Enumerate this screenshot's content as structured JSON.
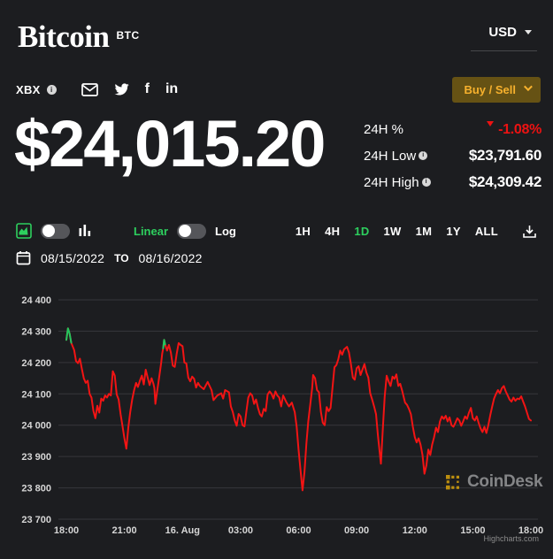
{
  "header": {
    "title": "Bitcoin",
    "symbol": "BTC",
    "currency": "USD",
    "index_label": "XBX",
    "buy_sell_label": "Buy / Sell"
  },
  "icons": {
    "info_glyph": "i",
    "facebook_glyph": "f",
    "linkedin_glyph": "in"
  },
  "price": {
    "current": "$24,015.20"
  },
  "stats": {
    "change_label": "24H %",
    "change_value": "-1.08%",
    "low_label": "24H Low",
    "low_value": "$23,791.60",
    "high_label": "24H High",
    "high_value": "$24,309.42"
  },
  "controls": {
    "scale_linear": "Linear",
    "scale_log": "Log",
    "ranges": [
      "1H",
      "4H",
      "1D",
      "1W",
      "1M",
      "1Y",
      "ALL"
    ],
    "active_range": "1D"
  },
  "date_range": {
    "from": "08/15/2022",
    "separator": "TO",
    "to": "08/16/2022"
  },
  "watermark": {
    "brand": "CoinDesk"
  },
  "credit": "Highcharts.com",
  "colors": {
    "background": "#1c1d20",
    "accent_green": "#2dcf5e",
    "negative_red": "#ed1212",
    "line_red": "#f21414",
    "up_green": "#22c55e",
    "buy_sell_bg": "#665214",
    "buy_sell_text": "#f7b12d",
    "gridline": "#36373b",
    "axis_text": "#d6d6d6"
  },
  "chart_data": {
    "type": "line",
    "title": "",
    "xlabel": "",
    "ylabel": "",
    "x_unit": "hours since 18:00 Aug 15, 2022",
    "x_range_hours": 24,
    "ylim": [
      23700,
      24400
    ],
    "grid": true,
    "legend": false,
    "y_ticks": [
      {
        "value": 24400,
        "label": "24 400"
      },
      {
        "value": 24300,
        "label": "24 300"
      },
      {
        "value": 24200,
        "label": "24 200"
      },
      {
        "value": 24100,
        "label": "24 100"
      },
      {
        "value": 24000,
        "label": "24 000"
      },
      {
        "value": 23900,
        "label": "23 900"
      },
      {
        "value": 23800,
        "label": "23 800"
      },
      {
        "value": 23700,
        "label": "23 700"
      }
    ],
    "x_ticks": [
      {
        "pos": 0,
        "label": "18:00"
      },
      {
        "pos": 3,
        "label": "21:00"
      },
      {
        "pos": 6,
        "label": "16. Aug"
      },
      {
        "pos": 9,
        "label": "03:00"
      },
      {
        "pos": 12,
        "label": "06:00"
      },
      {
        "pos": 15,
        "label": "09:00"
      },
      {
        "pos": 18,
        "label": "12:00"
      },
      {
        "pos": 21,
        "label": "15:00"
      },
      {
        "pos": 24,
        "label": "18:00"
      }
    ],
    "points": [
      [
        0,
        24272
      ],
      [
        0.08,
        24309
      ],
      [
        0.17,
        24292
      ],
      [
        0.25,
        24263
      ],
      [
        0.4,
        24240
      ],
      [
        0.5,
        24205
      ],
      [
        0.6,
        24198
      ],
      [
        0.7,
        24212
      ],
      [
        0.8,
        24180
      ],
      [
        0.9,
        24150
      ],
      [
        1.0,
        24135
      ],
      [
        1.1,
        24142
      ],
      [
        1.2,
        24100
      ],
      [
        1.3,
        24088
      ],
      [
        1.4,
        24045
      ],
      [
        1.5,
        24022
      ],
      [
        1.6,
        24062
      ],
      [
        1.7,
        24040
      ],
      [
        1.8,
        24085
      ],
      [
        1.9,
        24078
      ],
      [
        2.0,
        24095
      ],
      [
        2.1,
        24088
      ],
      [
        2.2,
        24100
      ],
      [
        2.3,
        24095
      ],
      [
        2.4,
        24172
      ],
      [
        2.5,
        24158
      ],
      [
        2.6,
        24098
      ],
      [
        2.7,
        24082
      ],
      [
        2.8,
        24035
      ],
      [
        2.9,
        23998
      ],
      [
        3.0,
        23958
      ],
      [
        3.1,
        23925
      ],
      [
        3.2,
        23992
      ],
      [
        3.3,
        24042
      ],
      [
        3.4,
        24082
      ],
      [
        3.5,
        24112
      ],
      [
        3.6,
        24135
      ],
      [
        3.7,
        24122
      ],
      [
        3.8,
        24142
      ],
      [
        3.9,
        24158
      ],
      [
        4.0,
        24130
      ],
      [
        4.1,
        24177
      ],
      [
        4.2,
        24152
      ],
      [
        4.3,
        24128
      ],
      [
        4.4,
        24150
      ],
      [
        4.5,
        24132
      ],
      [
        4.55,
        24118
      ],
      [
        4.6,
        24068
      ],
      [
        4.7,
        24112
      ],
      [
        4.8,
        24155
      ],
      [
        4.9,
        24200
      ],
      [
        4.95,
        24228
      ],
      [
        5.0,
        24245
      ],
      [
        5.05,
        24272
      ],
      [
        5.1,
        24258
      ],
      [
        5.2,
        24238
      ],
      [
        5.3,
        24256
      ],
      [
        5.4,
        24232
      ],
      [
        5.5,
        24190
      ],
      [
        5.6,
        24186
      ],
      [
        5.7,
        24228
      ],
      [
        5.8,
        24262
      ],
      [
        5.9,
        24256
      ],
      [
        6.0,
        24252
      ],
      [
        6.1,
        24200
      ],
      [
        6.2,
        24197
      ],
      [
        6.3,
        24152
      ],
      [
        6.4,
        24140
      ],
      [
        6.5,
        24155
      ],
      [
        6.6,
        24148
      ],
      [
        6.7,
        24120
      ],
      [
        6.8,
        24135
      ],
      [
        6.9,
        24125
      ],
      [
        7.1,
        24115
      ],
      [
        7.3,
        24138
      ],
      [
        7.5,
        24112
      ],
      [
        7.6,
        24080
      ],
      [
        7.8,
        24095
      ],
      [
        8.0,
        24102
      ],
      [
        8.1,
        24085
      ],
      [
        8.2,
        24112
      ],
      [
        8.4,
        24105
      ],
      [
        8.5,
        24060
      ],
      [
        8.6,
        24042
      ],
      [
        8.7,
        24015
      ],
      [
        8.8,
        23998
      ],
      [
        8.9,
        24036
      ],
      [
        9.0,
        24028
      ],
      [
        9.1,
        24000
      ],
      [
        9.2,
        23996
      ],
      [
        9.3,
        24042
      ],
      [
        9.4,
        24088
      ],
      [
        9.5,
        24102
      ],
      [
        9.6,
        24095
      ],
      [
        9.7,
        24068
      ],
      [
        9.8,
        24082
      ],
      [
        9.9,
        24055
      ],
      [
        10.0,
        24035
      ],
      [
        10.1,
        24028
      ],
      [
        10.2,
        24052
      ],
      [
        10.3,
        24045
      ],
      [
        10.4,
        24098
      ],
      [
        10.5,
        24108
      ],
      [
        10.6,
        24100
      ],
      [
        10.7,
        24085
      ],
      [
        10.8,
        24108
      ],
      [
        10.9,
        24095
      ],
      [
        11.0,
        24088
      ],
      [
        11.1,
        24060
      ],
      [
        11.2,
        24095
      ],
      [
        11.35,
        24075
      ],
      [
        11.5,
        24060
      ],
      [
        11.65,
        24072
      ],
      [
        11.8,
        24042
      ],
      [
        11.9,
        23995
      ],
      [
        12.0,
        23920
      ],
      [
        12.1,
        23855
      ],
      [
        12.2,
        23792
      ],
      [
        12.3,
        23850
      ],
      [
        12.4,
        23942
      ],
      [
        12.5,
        24012
      ],
      [
        12.6,
        24065
      ],
      [
        12.7,
        24118
      ],
      [
        12.75,
        24160
      ],
      [
        12.85,
        24150
      ],
      [
        12.95,
        24112
      ],
      [
        13.05,
        24105
      ],
      [
        13.15,
        24042
      ],
      [
        13.25,
        24008
      ],
      [
        13.35,
        24000
      ],
      [
        13.45,
        24058
      ],
      [
        13.55,
        24045
      ],
      [
        13.65,
        24055
      ],
      [
        13.75,
        24120
      ],
      [
        13.85,
        24185
      ],
      [
        13.95,
        24192
      ],
      [
        14.05,
        24210
      ],
      [
        14.15,
        24238
      ],
      [
        14.25,
        24225
      ],
      [
        14.35,
        24242
      ],
      [
        14.5,
        24250
      ],
      [
        14.6,
        24232
      ],
      [
        14.7,
        24195
      ],
      [
        14.8,
        24152
      ],
      [
        14.9,
        24145
      ],
      [
        15.0,
        24182
      ],
      [
        15.1,
        24188
      ],
      [
        15.2,
        24160
      ],
      [
        15.3,
        24178
      ],
      [
        15.4,
        24195
      ],
      [
        15.5,
        24168
      ],
      [
        15.6,
        24152
      ],
      [
        15.7,
        24102
      ],
      [
        15.8,
        24082
      ],
      [
        15.9,
        24060
      ],
      [
        16.0,
        24035
      ],
      [
        16.1,
        23965
      ],
      [
        16.25,
        23877
      ],
      [
        16.35,
        23990
      ],
      [
        16.45,
        24092
      ],
      [
        16.55,
        24158
      ],
      [
        16.65,
        24140
      ],
      [
        16.75,
        24125
      ],
      [
        16.85,
        24155
      ],
      [
        16.95,
        24148
      ],
      [
        17.05,
        24162
      ],
      [
        17.15,
        24125
      ],
      [
        17.25,
        24132
      ],
      [
        17.35,
        24110
      ],
      [
        17.5,
        24072
      ],
      [
        17.6,
        24065
      ],
      [
        17.7,
        24052
      ],
      [
        17.8,
        24035
      ],
      [
        17.9,
        23995
      ],
      [
        18.0,
        23962
      ],
      [
        18.1,
        23945
      ],
      [
        18.2,
        23958
      ],
      [
        18.3,
        23938
      ],
      [
        18.4,
        23905
      ],
      [
        18.5,
        23845
      ],
      [
        18.6,
        23872
      ],
      [
        18.7,
        23922
      ],
      [
        18.8,
        23905
      ],
      [
        18.9,
        23938
      ],
      [
        19.0,
        23962
      ],
      [
        19.1,
        23992
      ],
      [
        19.2,
        23978
      ],
      [
        19.3,
        24012
      ],
      [
        19.4,
        24028
      ],
      [
        19.5,
        24020
      ],
      [
        19.6,
        24030
      ],
      [
        19.7,
        24012
      ],
      [
        19.8,
        24025
      ],
      [
        19.9,
        24000
      ],
      [
        20.0,
        23995
      ],
      [
        20.1,
        24008
      ],
      [
        20.2,
        24022
      ],
      [
        20.3,
        24015
      ],
      [
        20.4,
        23998
      ],
      [
        20.5,
        24012
      ],
      [
        20.6,
        24028
      ],
      [
        20.7,
        24020
      ],
      [
        20.8,
        24040
      ],
      [
        20.9,
        24055
      ],
      [
        21.0,
        24022
      ],
      [
        21.1,
        24015
      ],
      [
        21.2,
        24028
      ],
      [
        21.3,
        24008
      ],
      [
        21.4,
        23990
      ],
      [
        21.5,
        23978
      ],
      [
        21.6,
        23995
      ],
      [
        21.7,
        23975
      ],
      [
        21.8,
        24000
      ],
      [
        21.9,
        24032
      ],
      [
        22.0,
        24060
      ],
      [
        22.1,
        24085
      ],
      [
        22.2,
        24100
      ],
      [
        22.3,
        24112
      ],
      [
        22.4,
        24102
      ],
      [
        22.5,
        24118
      ],
      [
        22.6,
        24125
      ],
      [
        22.7,
        24108
      ],
      [
        22.8,
        24095
      ],
      [
        22.9,
        24082
      ],
      [
        23.0,
        24075
      ],
      [
        23.1,
        24088
      ],
      [
        23.2,
        24078
      ],
      [
        23.3,
        24085
      ],
      [
        23.4,
        24083
      ],
      [
        23.5,
        24092
      ],
      [
        23.6,
        24075
      ],
      [
        23.7,
        24060
      ],
      [
        23.8,
        24040
      ],
      [
        23.9,
        24020
      ],
      [
        24.0,
        24015
      ]
    ],
    "green_segments": [
      [
        [
          0,
          24272
        ],
        [
          0.08,
          24309
        ],
        [
          0.17,
          24292
        ],
        [
          0.25,
          24263
        ]
      ],
      [
        [
          5.0,
          24245
        ],
        [
          5.05,
          24272
        ],
        [
          5.1,
          24258
        ]
      ]
    ],
    "line_color": "#f21414",
    "up_color": "#22c55e"
  }
}
